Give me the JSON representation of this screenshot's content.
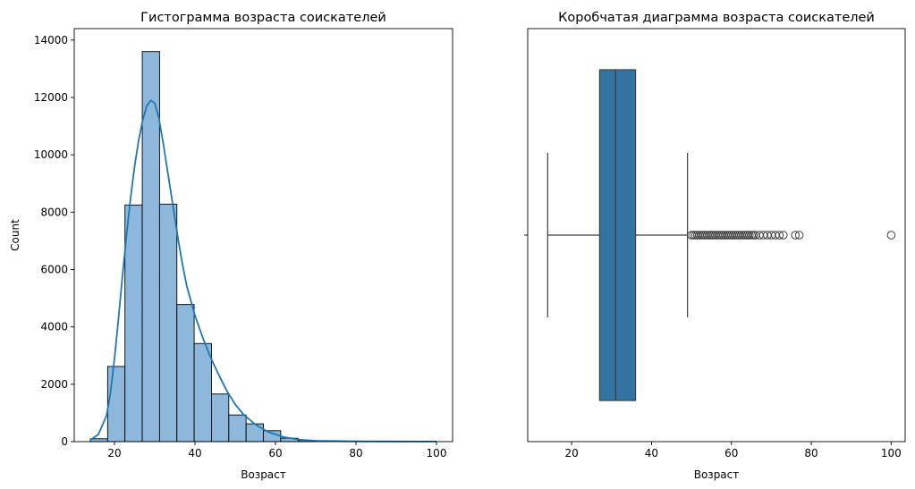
{
  "chart_data": [
    {
      "type": "bar",
      "subtype": "histogram-with-kde",
      "title": "Гистограмма возраста соискателей",
      "xlabel": "Возраст",
      "ylabel": "Count",
      "xlim": [
        10,
        104
      ],
      "ylim": [
        0,
        14400
      ],
      "xticks": [
        20,
        40,
        60,
        80,
        100
      ],
      "yticks": [
        0,
        2000,
        4000,
        6000,
        8000,
        10000,
        12000,
        14000
      ],
      "bar_color": "#8db8dc",
      "kde_color": "#1f77b4",
      "bins": [
        {
          "x0": 14.0,
          "x1": 18.3,
          "count": 100
        },
        {
          "x0": 18.3,
          "x1": 22.6,
          "count": 2620
        },
        {
          "x0": 22.6,
          "x1": 26.9,
          "count": 8250
        },
        {
          "x0": 26.9,
          "x1": 31.2,
          "count": 13600
        },
        {
          "x0": 31.2,
          "x1": 35.5,
          "count": 8280
        },
        {
          "x0": 35.5,
          "x1": 39.8,
          "count": 4780
        },
        {
          "x0": 39.8,
          "x1": 44.1,
          "count": 3420
        },
        {
          "x0": 44.1,
          "x1": 48.4,
          "count": 1660
        },
        {
          "x0": 48.4,
          "x1": 52.7,
          "count": 930
        },
        {
          "x0": 52.7,
          "x1": 57.0,
          "count": 620
        },
        {
          "x0": 57.0,
          "x1": 61.3,
          "count": 380
        },
        {
          "x0": 61.3,
          "x1": 65.6,
          "count": 120
        },
        {
          "x0": 65.6,
          "x1": 69.9,
          "count": 40
        }
      ],
      "kde": {
        "x": [
          14,
          16,
          18,
          19,
          20,
          21,
          22,
          23,
          24,
          25,
          26,
          27,
          28,
          29,
          30,
          31,
          32,
          33,
          34,
          35,
          36,
          37,
          38,
          40,
          42,
          44,
          46,
          48,
          50,
          52,
          55,
          58,
          62,
          66,
          70,
          80,
          90,
          100
        ],
        "y": [
          60,
          250,
          900,
          1700,
          2900,
          4300,
          5800,
          7200,
          8500,
          9600,
          10500,
          11200,
          11700,
          11900,
          11800,
          11300,
          10500,
          9600,
          8700,
          7800,
          6900,
          6100,
          5400,
          4400,
          3600,
          2900,
          2300,
          1750,
          1300,
          950,
          600,
          350,
          160,
          70,
          30,
          10,
          5,
          3
        ]
      }
    },
    {
      "type": "box",
      "title": "Коробчатая диаграмма возраста соискателей",
      "xlabel": "Возраст",
      "xlim": [
        9,
        103.5
      ],
      "xticks": [
        20,
        40,
        60,
        80,
        100
      ],
      "box_color": "#3274a1",
      "whisker_low": 14,
      "q1": 27,
      "median": 31,
      "q3": 36,
      "whisker_high": 49,
      "outliers": [
        50,
        50.5,
        51,
        51.5,
        52,
        52.5,
        53,
        53.5,
        54,
        54.5,
        55,
        55.5,
        56,
        56.5,
        57,
        57.5,
        58,
        58.5,
        59,
        59.5,
        60,
        60.5,
        61,
        61.5,
        62,
        62.5,
        63,
        63.5,
        64,
        64.5,
        65,
        65.5,
        66,
        67,
        68,
        69,
        70,
        71,
        72,
        73,
        76,
        77,
        100
      ]
    }
  ]
}
